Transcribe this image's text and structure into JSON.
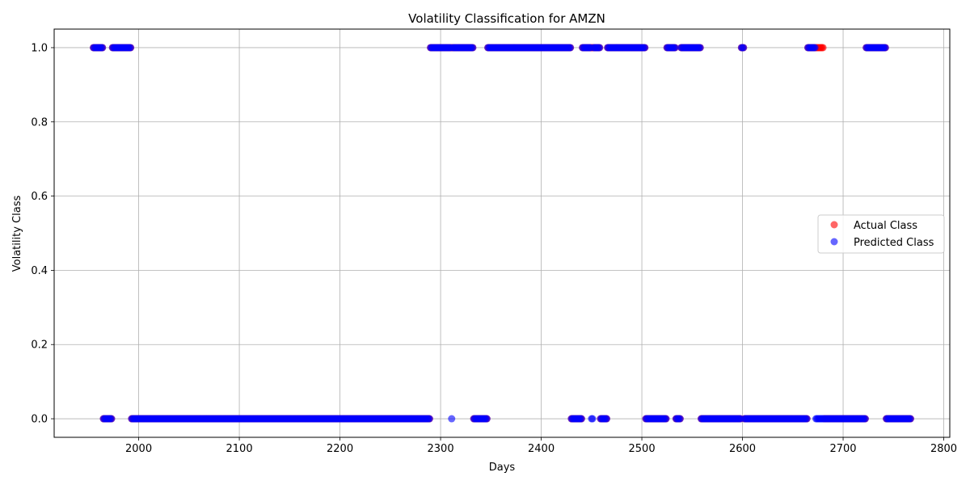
{
  "chart_data": {
    "type": "scatter",
    "title": "Volatility Classification for AMZN",
    "xlabel": "Days",
    "ylabel": "Volatility Class",
    "xlim": [
      1916,
      2806
    ],
    "ylim": [
      -0.05,
      1.05
    ],
    "xticks": [
      2000,
      2100,
      2200,
      2300,
      2400,
      2500,
      2600,
      2700,
      2800
    ],
    "yticks": [
      0.0,
      0.2,
      0.4,
      0.6,
      0.8,
      1.0
    ],
    "xtick_labels": [
      "2000",
      "2100",
      "2200",
      "2300",
      "2400",
      "2500",
      "2600",
      "2700",
      "2800"
    ],
    "ytick_labels": [
      "0.0",
      "0.2",
      "0.4",
      "0.6",
      "0.8",
      "1.0"
    ],
    "grid": true,
    "legend_position": "center-right",
    "series": [
      {
        "name": "Actual Class",
        "color": "#ff0000",
        "alpha": 0.6,
        "ones_segments": [
          [
            1955,
            1964
          ],
          [
            1974,
            1992
          ],
          [
            2290,
            2332
          ],
          [
            2347,
            2429
          ],
          [
            2441,
            2458
          ],
          [
            2466,
            2503
          ],
          [
            2525,
            2533
          ],
          [
            2539,
            2558
          ],
          [
            2599,
            2601
          ],
          [
            2665,
            2680
          ],
          [
            2723,
            2742
          ]
        ],
        "zeros_segments": [
          [
            1965,
            1973
          ],
          [
            1993,
            2289
          ],
          [
            2333,
            2346
          ],
          [
            2430,
            2440
          ],
          [
            2459,
            2465
          ],
          [
            2504,
            2524
          ],
          [
            2534,
            2538
          ],
          [
            2559,
            2598
          ],
          [
            2602,
            2664
          ],
          [
            2681,
            2722
          ],
          [
            2743,
            2767
          ]
        ]
      },
      {
        "name": "Predicted Class",
        "color": "#0000ff",
        "alpha": 0.6,
        "ones_segments": [
          [
            1955,
            1964
          ],
          [
            1974,
            1992
          ],
          [
            2290,
            2310
          ],
          [
            2312,
            2332
          ],
          [
            2347,
            2429
          ],
          [
            2441,
            2449
          ],
          [
            2452,
            2458
          ],
          [
            2466,
            2503
          ],
          [
            2525,
            2533
          ],
          [
            2539,
            2558
          ],
          [
            2599,
            2601
          ],
          [
            2665,
            2672
          ],
          [
            2723,
            2742
          ]
        ],
        "zeros_segments": [
          [
            1965,
            1973
          ],
          [
            1993,
            2289
          ],
          [
            2311,
            2311
          ],
          [
            2333,
            2346
          ],
          [
            2430,
            2440
          ],
          [
            2450,
            2451
          ],
          [
            2459,
            2465
          ],
          [
            2504,
            2524
          ],
          [
            2534,
            2538
          ],
          [
            2559,
            2598
          ],
          [
            2602,
            2664
          ],
          [
            2673,
            2722
          ],
          [
            2743,
            2767
          ]
        ]
      }
    ]
  }
}
